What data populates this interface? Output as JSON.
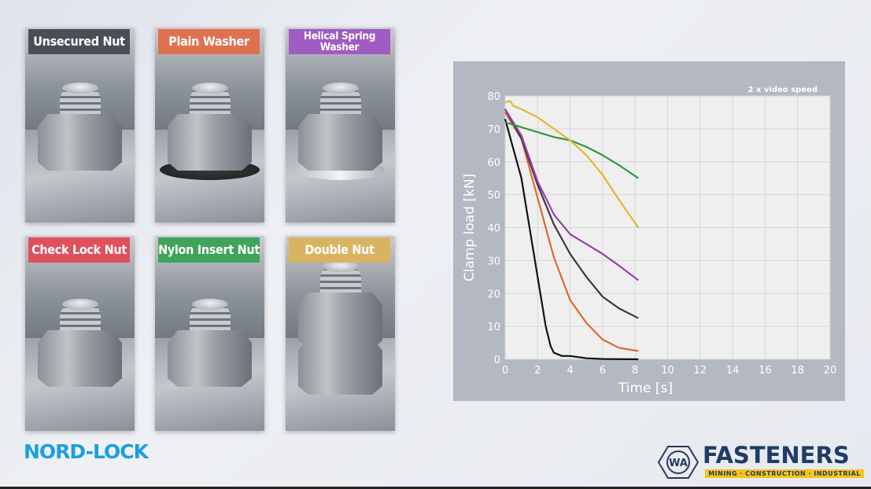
{
  "panels": [
    {
      "label": "Unsecured Nut",
      "color": "#4a4f57",
      "variant": "plain"
    },
    {
      "label": "Plain Washer",
      "color": "#e0714f",
      "variant": "dark-washer"
    },
    {
      "label": "Helical Spring Washer",
      "color": "#a05cc0",
      "variant": "spring-washer"
    },
    {
      "label": "Check Lock Nut",
      "color": "#e0505c",
      "variant": "check"
    },
    {
      "label": "Nylon Insert Nut",
      "color": "#3fa35a",
      "variant": "nylon"
    },
    {
      "label": "Double Nut",
      "color": "#d9b460",
      "variant": "double"
    }
  ],
  "logos": {
    "nord_lock": "NORD-LOCK",
    "wa_fasteners": "FASTENERS",
    "wa_badge": "WA",
    "wa_tagline": "MINING · CONSTRUCTION · INDUSTRIAL"
  },
  "chart_data": {
    "type": "line",
    "annotation": "2 x video speed",
    "xlabel": "Time [s]",
    "ylabel": "Clamp load [kN]",
    "xlim": [
      0,
      20
    ],
    "ylim": [
      0,
      80
    ],
    "xticks": [
      0,
      2,
      4,
      6,
      8,
      10,
      12,
      14,
      16,
      18,
      20
    ],
    "yticks": [
      0,
      10,
      20,
      30,
      40,
      50,
      60,
      70,
      80
    ],
    "grid": true,
    "background": "#efefef",
    "series": [
      {
        "color": "#111111",
        "x": [
          0,
          0.5,
          1,
          1.5,
          2,
          2.5,
          2.8,
          3,
          3.5,
          4,
          5,
          6,
          8.2
        ],
        "y": [
          73,
          64,
          55,
          40,
          25,
          10,
          4,
          2,
          1,
          1,
          0.3,
          0.1,
          0
        ]
      },
      {
        "color": "#e06a2c",
        "x": [
          0,
          1,
          2,
          3,
          4,
          5,
          6,
          7,
          8.2
        ],
        "y": [
          75,
          67,
          49,
          31,
          18,
          11,
          6,
          3.5,
          2.5
        ]
      },
      {
        "color": "#3c3a3c",
        "x": [
          0,
          1,
          2,
          3,
          4,
          5,
          6,
          7,
          8.2
        ],
        "y": [
          76,
          67,
          53,
          41,
          32,
          25,
          19,
          15.5,
          12.5
        ]
      },
      {
        "color": "#9a3fb0",
        "x": [
          0,
          1,
          2,
          3,
          4,
          5,
          6,
          7,
          8.2
        ],
        "y": [
          76,
          68,
          54,
          44,
          38,
          35,
          32,
          28.5,
          24
        ]
      },
      {
        "color": "#2e9a40",
        "x": [
          0,
          1,
          2,
          3,
          4,
          5,
          6,
          7,
          8.2
        ],
        "y": [
          72,
          70.5,
          69,
          67.5,
          66.5,
          64.5,
          62,
          59,
          55
        ]
      },
      {
        "color": "#e0b830",
        "x": [
          0,
          0.3,
          0.5,
          1,
          2,
          3,
          4,
          5,
          6,
          7,
          8.2
        ],
        "y": [
          78,
          78.5,
          77,
          76,
          73.5,
          70,
          66.5,
          62,
          56,
          48.5,
          40
        ]
      }
    ]
  }
}
